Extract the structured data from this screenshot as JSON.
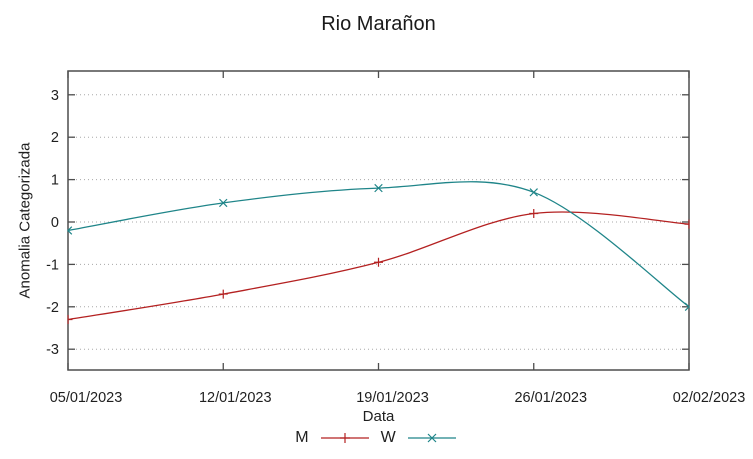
{
  "title": "Rio Marañon",
  "chart_data": {
    "type": "line",
    "title": "Rio Marañon",
    "xlabel": "Data",
    "ylabel": "Anomalia Categorizada",
    "categories": [
      "05/01/2023",
      "12/01/2023",
      "19/01/2023",
      "26/01/2023",
      "02/02/2023"
    ],
    "series": [
      {
        "name": "M",
        "marker": "plus",
        "color": "#b42121",
        "values": [
          -2.3,
          -1.7,
          -0.95,
          0.2,
          -0.05
        ]
      },
      {
        "name": "W",
        "marker": "cross",
        "color": "#1f8589",
        "values": [
          -0.2,
          0.45,
          0.8,
          0.7,
          -2.0
        ]
      }
    ],
    "ylim": [
      -3.5,
      3.5
    ],
    "yticks": [
      -3,
      -2,
      -1,
      0,
      1,
      2,
      3
    ],
    "grid": "horizontal-dotted",
    "legend_position": "bottom-center",
    "grid_color": "#a8a8a8",
    "border_color": "#4d4d4d",
    "text_color": "#1f1f1f"
  }
}
